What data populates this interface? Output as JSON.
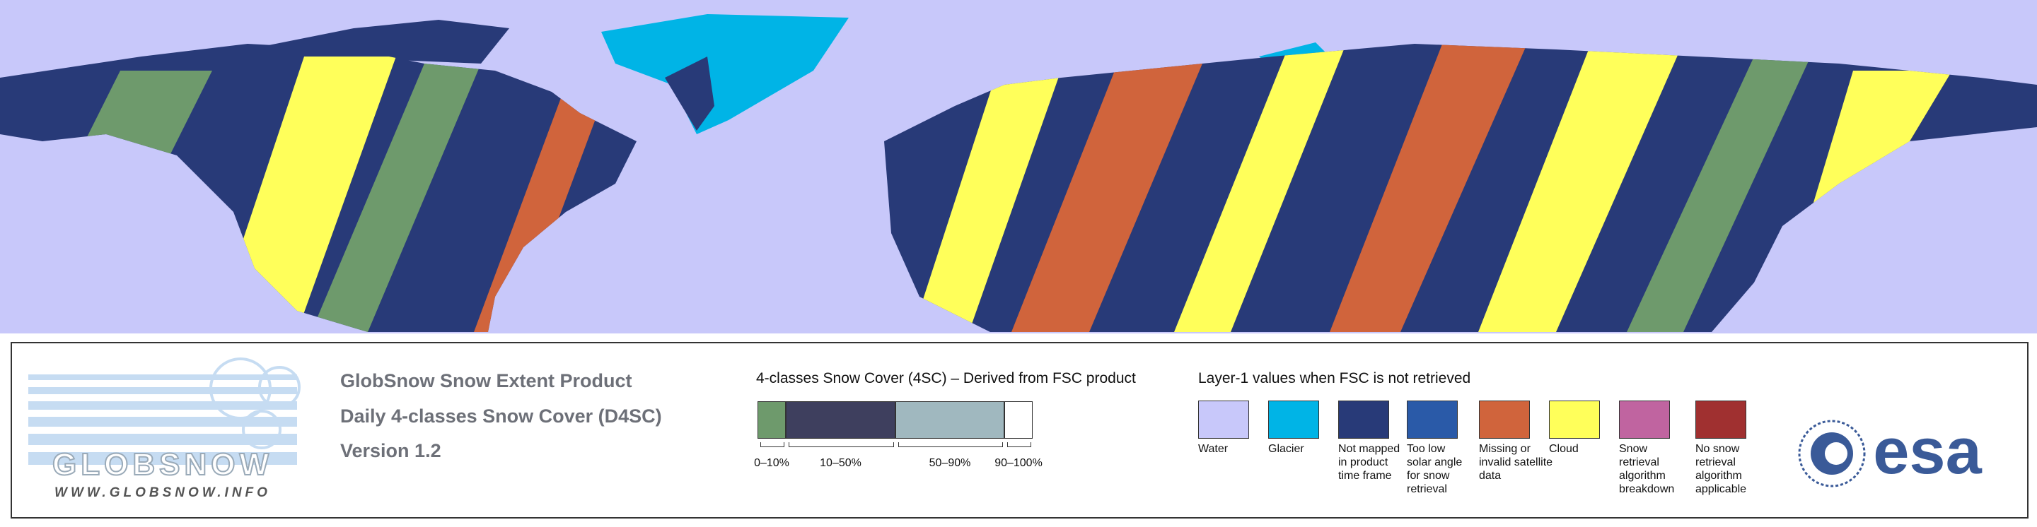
{
  "product": {
    "title": "GlobSnow Snow Extent Product",
    "subtitle": "Daily 4-classes Snow Cover (D4SC)",
    "version": "Version 1.2"
  },
  "logo": {
    "name": "GLOBSNOW",
    "url": "WWW.GLOBSNOW.INFO"
  },
  "snow_cover_legend": {
    "title": "4-classes Snow Cover (4SC) – Derived from FSC product",
    "classes": [
      {
        "label": "0–10%",
        "color": "#6e9a6c"
      },
      {
        "label": "10–50%",
        "color": "#3e3f5e"
      },
      {
        "label": "50–90%",
        "color": "#a0b8bf"
      },
      {
        "label": "90–100%",
        "color": "#ffffff"
      }
    ]
  },
  "layer1_legend": {
    "title": "Layer-1 values when FSC is not retrieved",
    "items": [
      {
        "label": "Water",
        "color": "#c8c8fa"
      },
      {
        "label": "Glacier",
        "color": "#00b4e6"
      },
      {
        "label": "Not mapped in product time frame",
        "color": "#283a78"
      },
      {
        "label": "Too low solar angle for snow retrieval",
        "color": "#2a5aa8"
      },
      {
        "label": "Missing or invalid satellite data",
        "color": "#d0643c"
      },
      {
        "label": "Cloud",
        "color": "#ffff5a"
      },
      {
        "label": "Snow retrieval algorithm breakdown",
        "color": "#c064a0"
      },
      {
        "label": "No snow retrieval algorithm applicable",
        "color": "#a03030"
      }
    ]
  },
  "esa": "esa"
}
